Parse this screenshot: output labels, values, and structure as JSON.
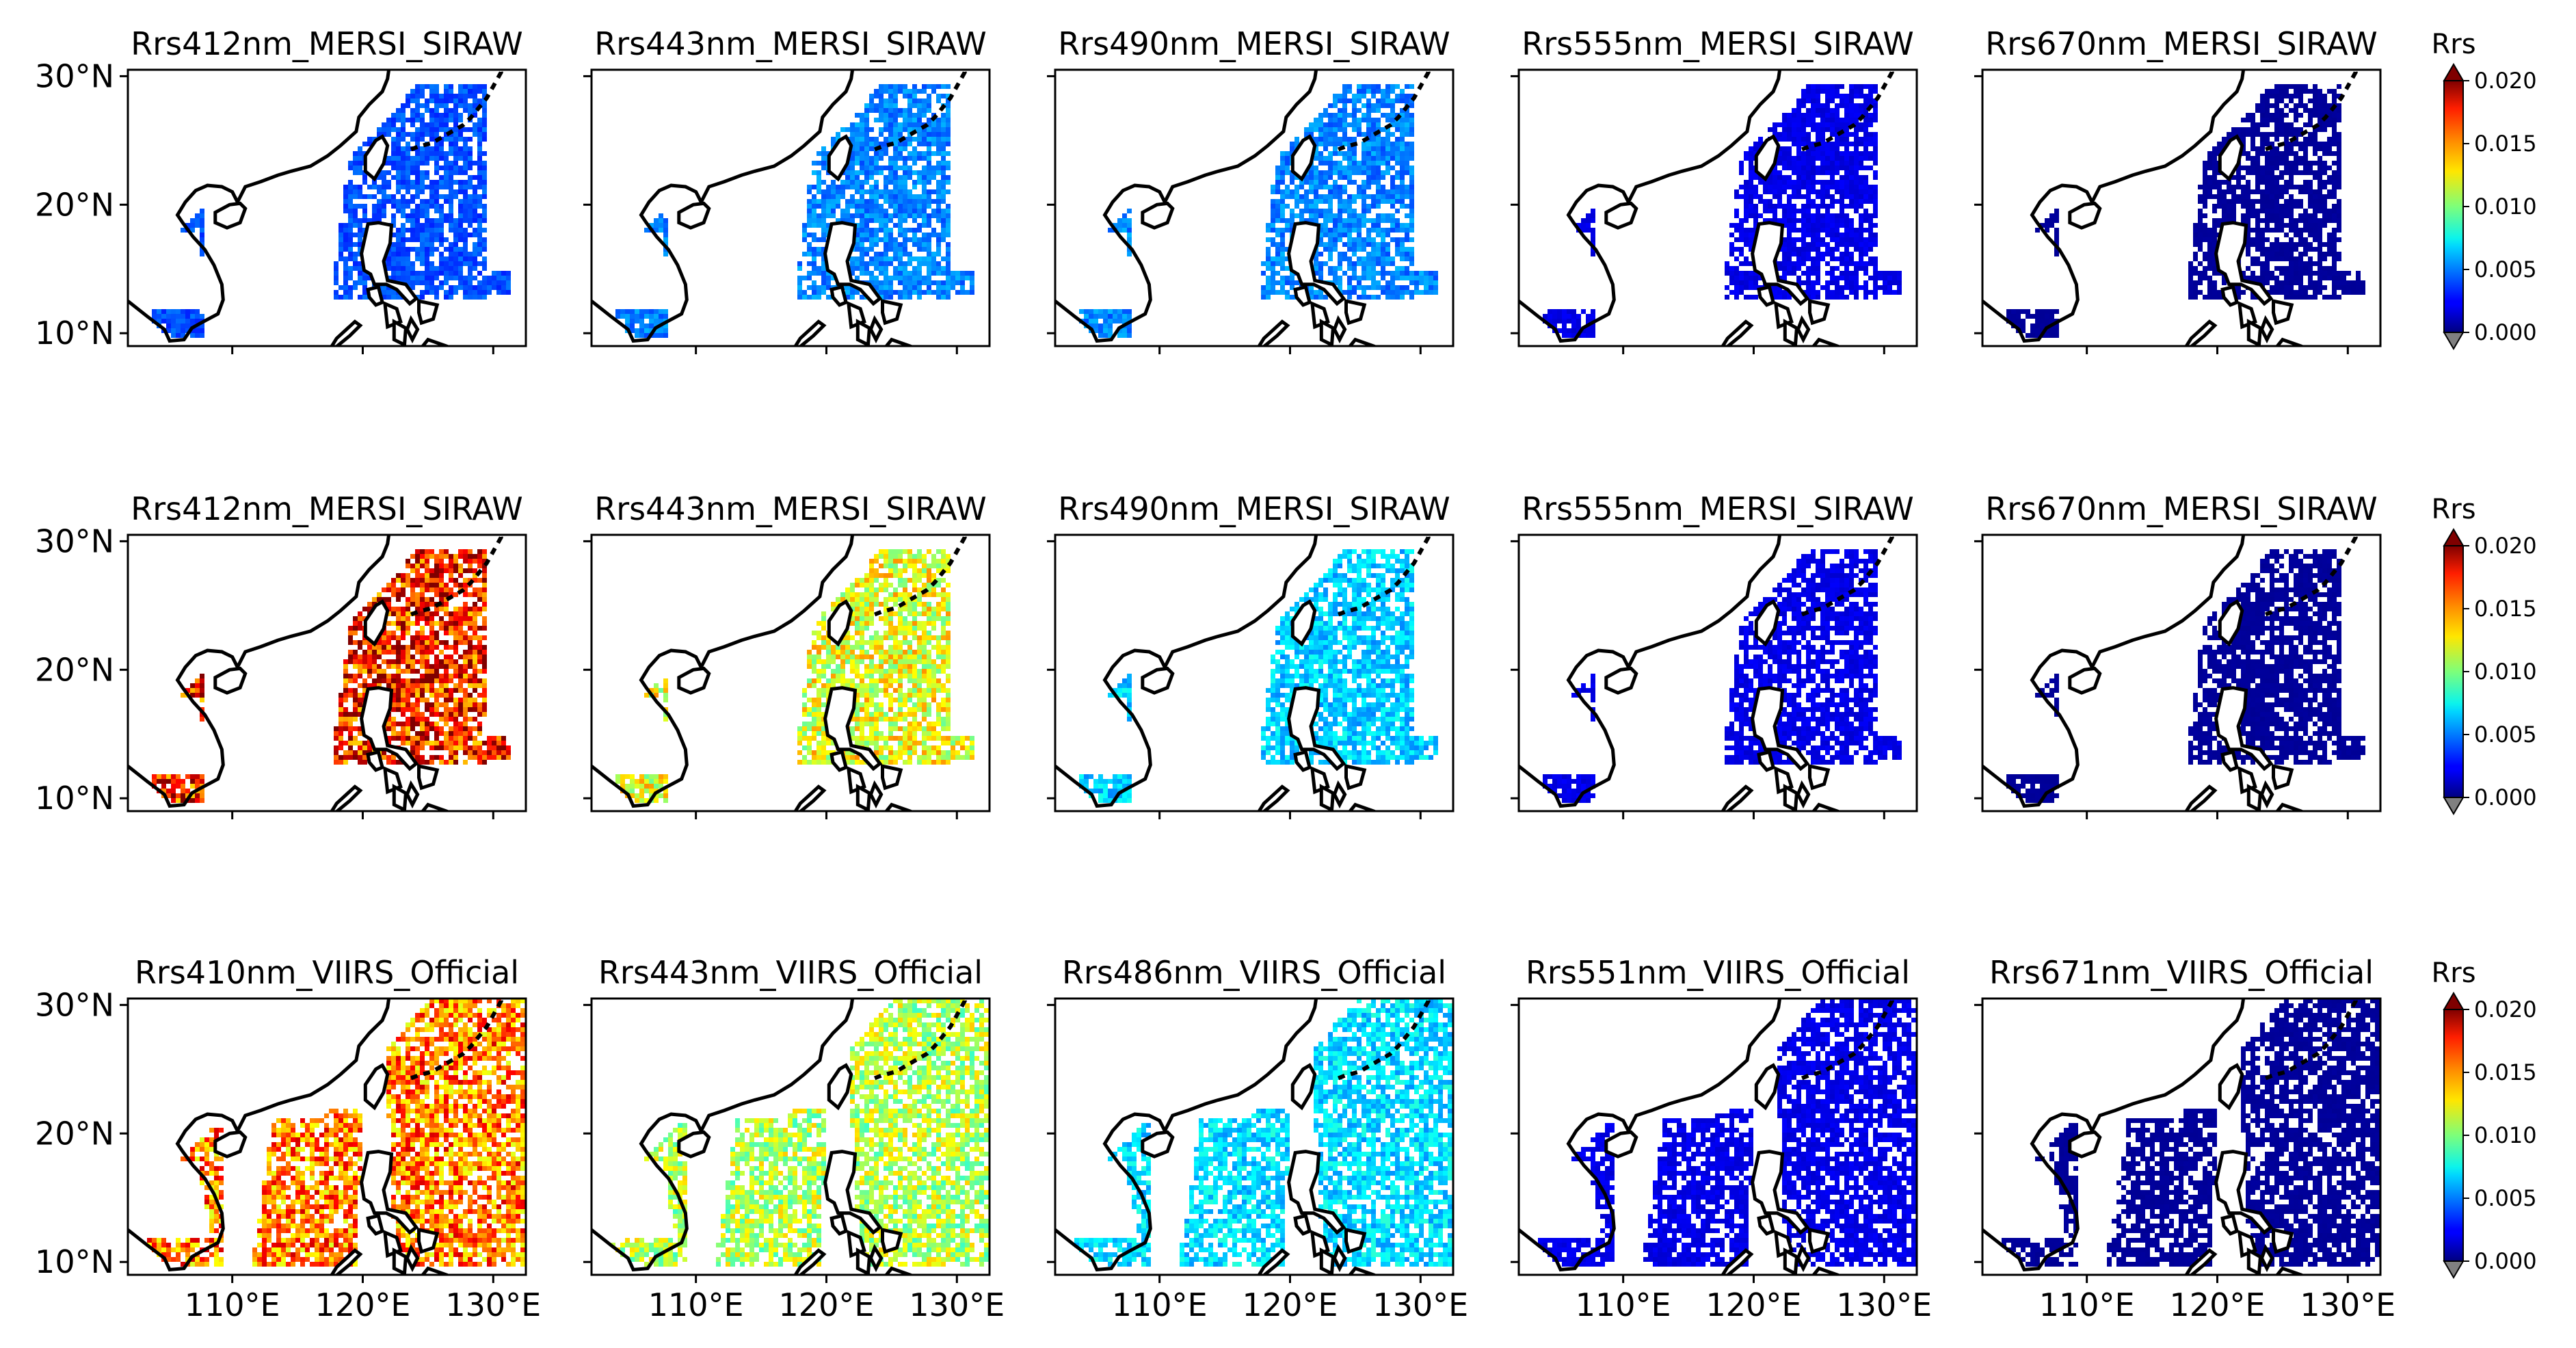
{
  "chart_data": {
    "type": "heatmap",
    "description_axes": {
      "y_ticks": [
        "10°N",
        "20°N",
        "30°N"
      ],
      "y_tick_values": [
        10,
        20,
        30
      ],
      "x_ticks": [
        "110°E",
        "120°E",
        "130°E"
      ],
      "x_tick_values": [
        110,
        120,
        130
      ],
      "lon_range": [
        102,
        132.5
      ],
      "lat_range": [
        9,
        30.5
      ]
    },
    "colorbar": {
      "label": "Rrs",
      "ticks": [
        "0.000",
        "0.005",
        "0.010",
        "0.015",
        "0.020"
      ],
      "tick_values": [
        0.0,
        0.005,
        0.01,
        0.015,
        0.02
      ],
      "range": [
        0.0,
        0.02
      ],
      "colormap": "jet",
      "extend": "both",
      "under_color": "#808080",
      "over_color": "#7f0000"
    },
    "rows": [
      {
        "panels": [
          {
            "title": "Rrs412nm_MERSI_SIRAW",
            "typical_rrs": 0.004
          },
          {
            "title": "Rrs443nm_MERSI_SIRAW",
            "typical_rrs": 0.005
          },
          {
            "title": "Rrs490nm_MERSI_SIRAW",
            "typical_rrs": 0.005
          },
          {
            "title": "Rrs555nm_MERSI_SIRAW",
            "typical_rrs": 0.002
          },
          {
            "title": "Rrs670nm_MERSI_SIRAW",
            "typical_rrs": 0.0005
          }
        ]
      },
      {
        "panels": [
          {
            "title": "Rrs412nm_MERSI_SIRAW",
            "typical_rrs": 0.017
          },
          {
            "title": "Rrs443nm_MERSI_SIRAW",
            "typical_rrs": 0.012
          },
          {
            "title": "Rrs490nm_MERSI_SIRAW",
            "typical_rrs": 0.0065
          },
          {
            "title": "Rrs555nm_MERSI_SIRAW",
            "typical_rrs": 0.002
          },
          {
            "title": "Rrs670nm_MERSI_SIRAW",
            "typical_rrs": 0.0005
          }
        ]
      },
      {
        "panels": [
          {
            "title": "Rrs410nm_VIIRS_Official",
            "typical_rrs": 0.015
          },
          {
            "title": "Rrs443nm_VIIRS_Official",
            "typical_rrs": 0.011
          },
          {
            "title": "Rrs486nm_VIIRS_Official",
            "typical_rrs": 0.0068
          },
          {
            "title": "Rrs551nm_VIIRS_Official",
            "typical_rrs": 0.002
          },
          {
            "title": "Rrs671nm_VIIRS_Official",
            "typical_rrs": 0.0005
          }
        ]
      }
    ]
  }
}
